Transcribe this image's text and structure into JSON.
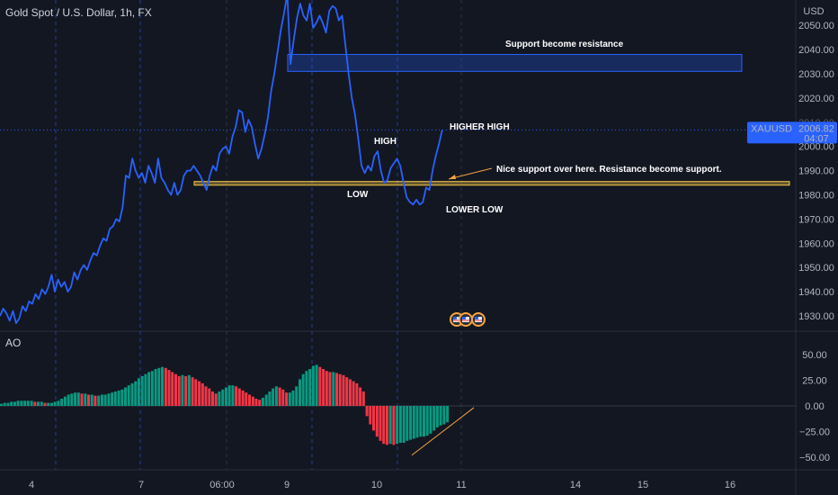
{
  "header": {
    "title": "Gold Spot / U.S. Dollar, 1h, FX",
    "currency": "USD"
  },
  "indicator": {
    "name": "AO"
  },
  "price_badge": {
    "symbol": "XAUUSD",
    "price": "2006.82",
    "countdown": "04:07",
    "color": "#2962ff"
  },
  "colors": {
    "line": "#2962ff",
    "ao_up": "#089981",
    "ao_down": "#f23645",
    "zone": "#2962ff",
    "support": "#f7c948",
    "arrow": "#f7a441"
  },
  "annotations": {
    "support_resistance": "Support become resistance",
    "high": "HIGH",
    "higher_high": "HIGHER HIGH",
    "low": "LOW",
    "lower_low": "LOWER LOW",
    "nice_support": "Nice support over here. Resistance become support."
  },
  "chart_data": [
    {
      "type": "line",
      "title": "Gold Spot / U.S. Dollar, 1h, FX",
      "x_ticks": [
        "4",
        "7",
        "06:00",
        "9",
        "10",
        "11",
        "14",
        "15",
        "16"
      ],
      "y_ticks": [
        1930,
        1940,
        1950,
        1960,
        1970,
        1980,
        1990,
        2000,
        2010,
        2020,
        2030,
        2040,
        2050,
        2060
      ],
      "ylim": [
        1925,
        2061
      ],
      "y_axis_unit": "USD",
      "last_price": 2006.82,
      "resistance_zone": [
        2031,
        2038
      ],
      "support_zone": [
        1984,
        1985.5
      ],
      "series": [
        {
          "values": [
            1930,
            1933,
            1931,
            1928,
            1932,
            1927,
            1929,
            1934,
            1932,
            1936,
            1935,
            1939,
            1937,
            1941,
            1939,
            1942,
            1947,
            1940,
            1945,
            1942,
            1944,
            1940,
            1942,
            1948,
            1945,
            1949,
            1951,
            1949,
            1953,
            1956,
            1955,
            1959,
            1962,
            1961,
            1966,
            1967,
            1970,
            1969,
            1975,
            1988,
            1987,
            1995,
            1990,
            1987,
            1989,
            1985,
            1992,
            1989,
            1985,
            1995,
            1987,
            1985,
            1982,
            1980,
            1985,
            1980,
            1982,
            1988,
            1990,
            1990,
            1992,
            1990,
            1988,
            1985,
            1982,
            1988,
            1992,
            1990,
            1997,
            1999,
            2000,
            1997,
            2004,
            2008,
            2015,
            2014,
            2006,
            2011,
            2008,
            2001,
            1995,
            1999,
            2005,
            2012,
            2023,
            2030,
            2039,
            2048,
            2055,
            2063,
            2034,
            2044,
            2053,
            2059,
            2054,
            2052,
            2059,
            2049,
            2051,
            2054,
            2051,
            2047,
            2056,
            2058,
            2057,
            2052,
            2054,
            2042,
            2030,
            2020,
            2013,
            2003,
            1992,
            1989,
            1992,
            1990,
            1996,
            1998,
            1990,
            1985,
            1986,
            1991,
            1993,
            1995,
            1992,
            1985,
            1979,
            1977,
            1976,
            1978,
            1976,
            1977,
            1983,
            1982,
            1990,
            1996,
            2001,
            2006.82
          ],
          "x_start": 0,
          "x_step": 3.59
        }
      ]
    },
    {
      "type": "bar",
      "title": "AO",
      "y_ticks": [
        50,
        25,
        0,
        -25,
        -50
      ],
      "ylim": [
        -55,
        55
      ],
      "values": [
        2,
        3,
        3,
        4,
        4,
        5,
        5,
        5,
        5,
        5,
        4,
        4,
        4,
        3,
        3,
        3,
        4,
        5,
        7,
        9,
        11,
        12,
        13,
        13,
        12,
        12,
        11,
        11,
        10,
        10,
        11,
        11,
        12,
        13,
        14,
        15,
        16,
        18,
        20,
        22,
        24,
        27,
        29,
        31,
        33,
        34,
        36,
        37,
        38,
        37,
        35,
        33,
        31,
        29,
        30,
        29,
        30,
        28,
        26,
        24,
        22,
        19,
        17,
        14,
        12,
        14,
        16,
        18,
        20,
        20,
        19,
        17,
        15,
        13,
        11,
        9,
        7,
        6,
        8,
        11,
        14,
        17,
        19,
        18,
        16,
        13,
        13,
        15,
        19,
        26,
        31,
        34,
        36,
        39,
        40,
        38,
        36,
        34,
        33,
        33,
        32,
        31,
        30,
        28,
        26,
        24,
        22,
        18,
        14,
        -10,
        -18,
        -24,
        -30,
        -34,
        -37,
        -38,
        -37,
        -38,
        -37,
        -36,
        -36,
        -34,
        -33,
        -32,
        -31,
        -30,
        -30,
        -29,
        -27,
        -24,
        -21,
        -19,
        -18,
        -16
      ],
      "x_start": 0,
      "x_step": 3.73,
      "trendline": {
        "from": [
          -48,
          49.0
        ],
        "to": [
          -1.7,
          55.0
        ]
      }
    }
  ]
}
